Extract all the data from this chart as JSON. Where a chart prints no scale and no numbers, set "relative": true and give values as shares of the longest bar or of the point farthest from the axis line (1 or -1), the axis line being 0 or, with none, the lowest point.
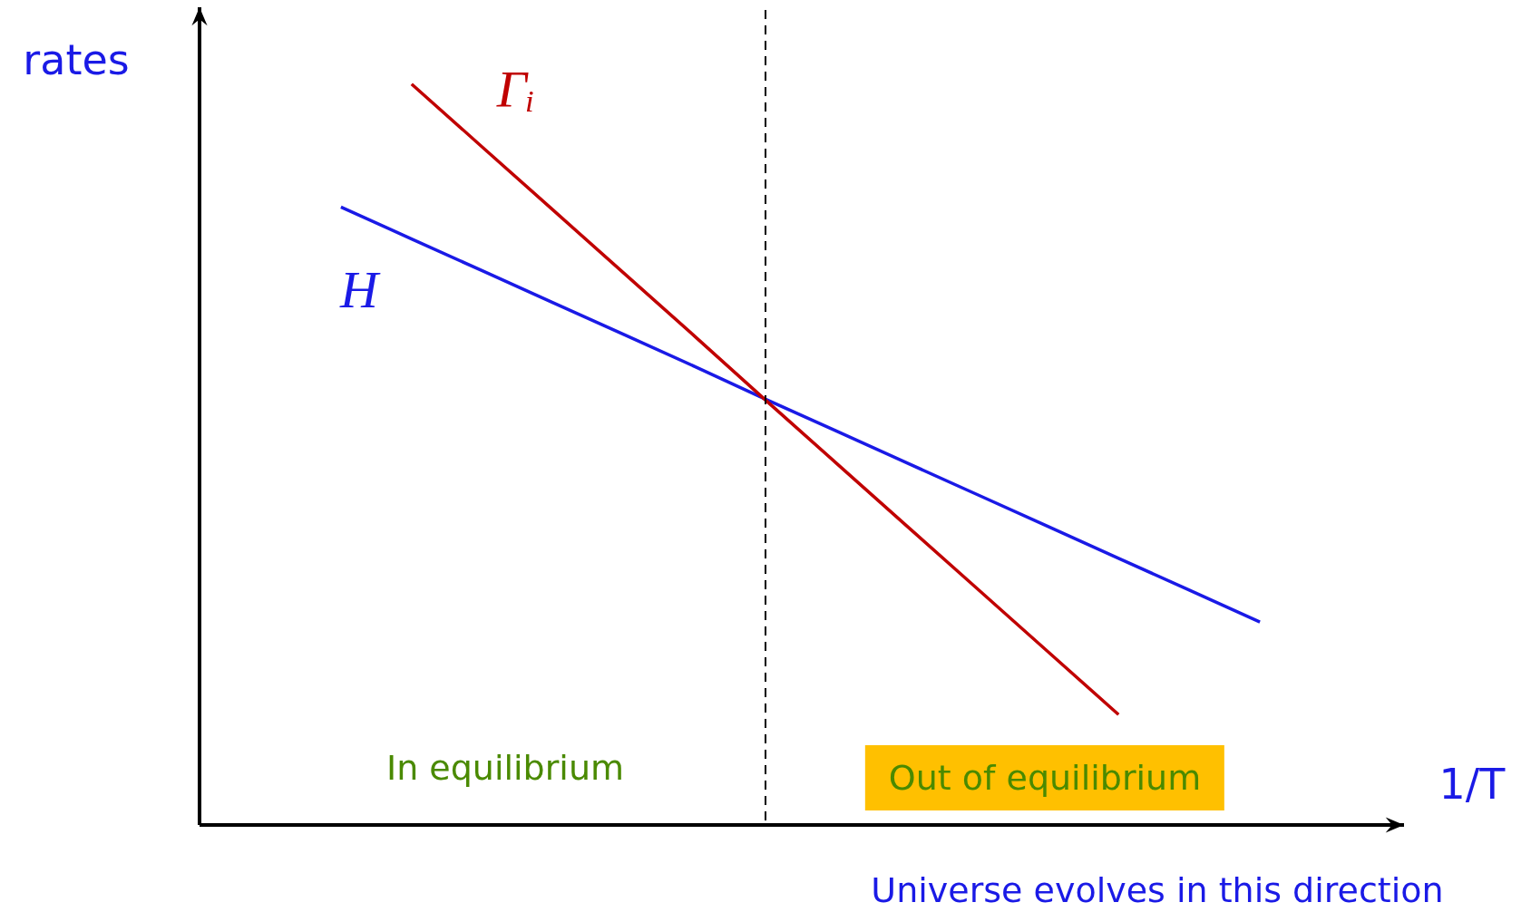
{
  "chart_data": {
    "type": "line",
    "relative": true,
    "xlabel": "1/T",
    "ylabel": "rates",
    "legend": false,
    "marker": "none",
    "categories": [
      null,
      null,
      null,
      null,
      null,
      null,
      null,
      null,
      null,
      null,
      null,
      null,
      null,
      null,
      null,
      null,
      null,
      null
    ],
    "series": [
      {
        "name": "Γᵢ",
        "color": "#c00000",
        "values": [
          null,
          null,
          null,
          1,
          0.915,
          0.83,
          0.745,
          0.66,
          0.574,
          0.489,
          0.404,
          0.319,
          0.234,
          0.149,
          null,
          null,
          null,
          null
        ]
      },
      {
        "name": "H",
        "color": "#1a1ae6",
        "values": [
          null,
          null,
          0.834,
          0.791,
          0.748,
          0.705,
          0.662,
          0.619,
          0.575,
          0.532,
          0.489,
          0.446,
          0.403,
          0.36,
          0.317,
          0.274,
          null,
          null
        ]
      }
    ],
    "annotations": [
      "In equilibrium",
      "Out of equilibrium",
      "Universe evolves in this direction"
    ]
  }
}
